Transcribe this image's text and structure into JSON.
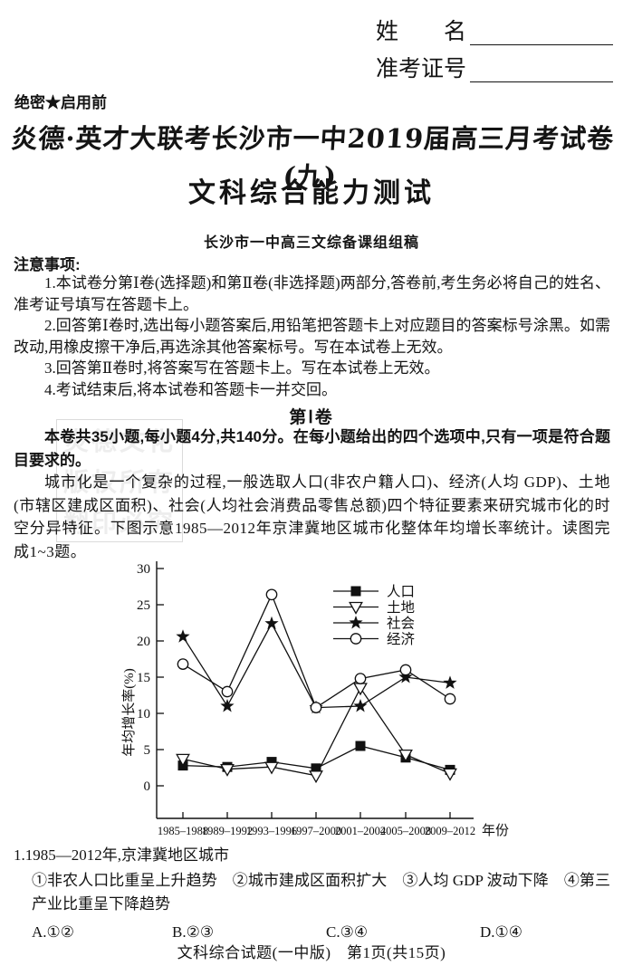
{
  "header": {
    "name_label": "姓　　名",
    "exam_id_label": "准考证号",
    "secret_label": "绝密★启用前",
    "main_title": "炎德·英才大联考长沙市一中2019届高三月考试卷(九)",
    "subject_title": "文科综合能力测试",
    "byline": "长沙市一中高三文综备课组组稿"
  },
  "watermark": {
    "lines": [
      "炎德文化",
      "版权所有",
      "翻印必究"
    ]
  },
  "notice": {
    "heading": "注意事项:",
    "items": [
      "1.本试卷分第Ⅰ卷(选择题)和第Ⅱ卷(非选择题)两部分,答卷前,考生务必将自己的姓名、准考证号填写在答题卡上。",
      "2.回答第Ⅰ卷时,选出每小题答案后,用铅笔把答题卡上对应题目的答案标号涂黑。如需改动,用橡皮擦干净后,再选涂其他答案标号。写在本试卷上无效。",
      "3.回答第Ⅱ卷时,将答案写在答题卡上。写在本试卷上无效。",
      "4.考试结束后,将本试卷和答题卡一并交回。"
    ]
  },
  "section1": {
    "title": "第Ⅰ卷",
    "instructions": "本卷共35小题,每小题4分,共140分。在每小题给出的四个选项中,只有一项是符合题目要求的。",
    "passage": "城市化是一个复杂的过程,一般选取人口(非农户籍人口)、经济(人均 GDP)、土地(市辖区建成区面积)、社会(人均社会消费品零售总额)四个特征要素来研究城市化的时空分异特征。下图示意1985—2012年京津冀地区城市化整体年均增长率统计。读图完成1~3题。"
  },
  "chart_data": {
    "type": "line",
    "categories": [
      "1985–1988",
      "1989–1992",
      "1993–1996",
      "1997–2000",
      "2001–2004",
      "2005–2008",
      "2009–2012"
    ],
    "series": [
      {
        "name": "人口",
        "marker": "square-filled",
        "values": [
          2.8,
          2.6,
          3.3,
          2.4,
          5.5,
          3.9,
          2.2
        ]
      },
      {
        "name": "土地",
        "marker": "triangle-down-open",
        "values": [
          3.7,
          2.3,
          2.6,
          1.4,
          13.5,
          4.3,
          1.7
        ]
      },
      {
        "name": "社会",
        "marker": "star-filled",
        "values": [
          20.6,
          11.0,
          22.4,
          10.8,
          11.0,
          15.0,
          14.2
        ]
      },
      {
        "name": "经济",
        "marker": "circle-open",
        "values": [
          16.8,
          13.0,
          26.4,
          10.8,
          14.8,
          16.0,
          12.0
        ]
      }
    ],
    "xlabel": "年份",
    "ylabel": "年均增长率(%)",
    "yticks": [
      0,
      5,
      10,
      15,
      20,
      25,
      30
    ],
    "ylim": [
      -4.5,
      31
    ],
    "grid": false,
    "legend_position": "upper-right-inside",
    "line_color": "#111111"
  },
  "question1": {
    "stem": "1.1985—2012年,京津冀地区城市",
    "options_line": "①非农人口比重呈上升趋势　②城市建成区面积扩大　③人均 GDP 波动下降　④第三产业比重呈下降趋势",
    "choices": [
      {
        "label": "A.①②"
      },
      {
        "label": "B.②③"
      },
      {
        "label": "C.③④"
      },
      {
        "label": "D.①④"
      }
    ]
  },
  "footer": {
    "text": "文科综合试题(一中版)　第1页(共15页)"
  }
}
